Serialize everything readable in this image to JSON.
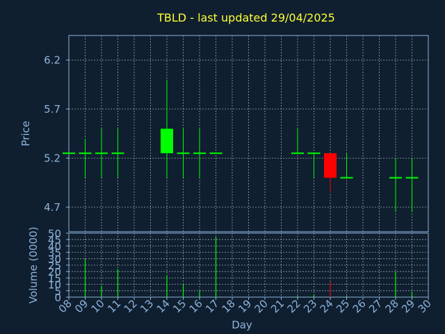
{
  "title": "TBLD - last updated 29/04/2025",
  "colors": {
    "background": "#0f1f30",
    "title": "#ffff33",
    "axis": "#8fb3d9",
    "up": "#00ff00",
    "down": "#ff0000"
  },
  "chart_data": [
    {
      "type": "candlestick",
      "ylabel": "Price",
      "ylim": [
        4.45,
        6.45
      ],
      "yticks": [
        "4.7",
        "5.2",
        "5.7",
        "6.2"
      ],
      "grid": true,
      "candles": [
        {
          "day": 8,
          "open": 5.25,
          "high": 5.25,
          "low": 5.25,
          "close": 5.25
        },
        {
          "day": 9,
          "open": 5.25,
          "high": 5.4,
          "low": 5.0,
          "close": 5.25
        },
        {
          "day": 10,
          "open": 5.25,
          "high": 5.5,
          "low": 5.0,
          "close": 5.25
        },
        {
          "day": 11,
          "open": 5.25,
          "high": 5.5,
          "low": 5.0,
          "close": 5.25
        },
        {
          "day": 14,
          "open": 5.25,
          "high": 6.0,
          "low": 5.0,
          "close": 5.5
        },
        {
          "day": 15,
          "open": 5.25,
          "high": 5.5,
          "low": 5.0,
          "close": 5.25
        },
        {
          "day": 16,
          "open": 5.25,
          "high": 5.5,
          "low": 5.0,
          "close": 5.25
        },
        {
          "day": 17,
          "open": 5.25,
          "high": 5.25,
          "low": 5.25,
          "close": 5.25
        },
        {
          "day": 22,
          "open": 5.25,
          "high": 5.5,
          "low": 5.25,
          "close": 5.25
        },
        {
          "day": 23,
          "open": 5.25,
          "high": 5.25,
          "low": 5.0,
          "close": 5.25
        },
        {
          "day": 24,
          "open": 5.25,
          "high": 5.25,
          "low": 4.85,
          "close": 5.0
        },
        {
          "day": 25,
          "open": 5.0,
          "high": 5.25,
          "low": 5.0,
          "close": 5.0
        },
        {
          "day": 28,
          "open": 5.0,
          "high": 5.2,
          "low": 4.65,
          "close": 5.0
        },
        {
          "day": 29,
          "open": 5.0,
          "high": 5.2,
          "low": 4.65,
          "close": 5.0
        }
      ]
    },
    {
      "type": "bar",
      "ylabel": "Volume (0000)",
      "ylim": [
        0,
        50
      ],
      "yticks": [
        "0",
        "5",
        "10",
        "15",
        "20",
        "25",
        "30",
        "35",
        "40",
        "45",
        "50"
      ],
      "xlabel": "Day",
      "xticks": [
        "08",
        "09",
        "10",
        "11",
        "12",
        "13",
        "14",
        "15",
        "16",
        "17",
        "18",
        "19",
        "20",
        "21",
        "22",
        "23",
        "24",
        "25",
        "26",
        "27",
        "28",
        "29",
        "30"
      ],
      "bars": [
        {
          "day": 9,
          "value": 30,
          "color": "up"
        },
        {
          "day": 10,
          "value": 9,
          "color": "up"
        },
        {
          "day": 11,
          "value": 22,
          "color": "up"
        },
        {
          "day": 14,
          "value": 17,
          "color": "up"
        },
        {
          "day": 15,
          "value": 10,
          "color": "up"
        },
        {
          "day": 16,
          "value": 5,
          "color": "up"
        },
        {
          "day": 17,
          "value": 47,
          "color": "up"
        },
        {
          "day": 22,
          "value": 1,
          "color": "up"
        },
        {
          "day": 23,
          "value": 2,
          "color": "up"
        },
        {
          "day": 24,
          "value": 12,
          "color": "down"
        },
        {
          "day": 25,
          "value": 1,
          "color": "up"
        },
        {
          "day": 28,
          "value": 20,
          "color": "up"
        },
        {
          "day": 29,
          "value": 4,
          "color": "up"
        }
      ]
    }
  ]
}
